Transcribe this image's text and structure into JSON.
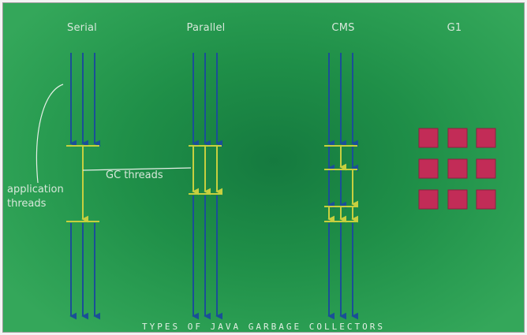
{
  "collectors": [
    {
      "name": "Serial"
    },
    {
      "name": "Parallel"
    },
    {
      "name": "CMS"
    },
    {
      "name": "G1"
    }
  ],
  "annotations": {
    "application_threads": "application\nthreads",
    "gc_threads": "GC threads"
  },
  "caption": "Types of Java Garbage Collectors",
  "colors": {
    "app_thread": "#1a4f97",
    "gc_thread": "#c7cf3f",
    "g1_region": "#c22c57",
    "text": "#d7e8da"
  }
}
